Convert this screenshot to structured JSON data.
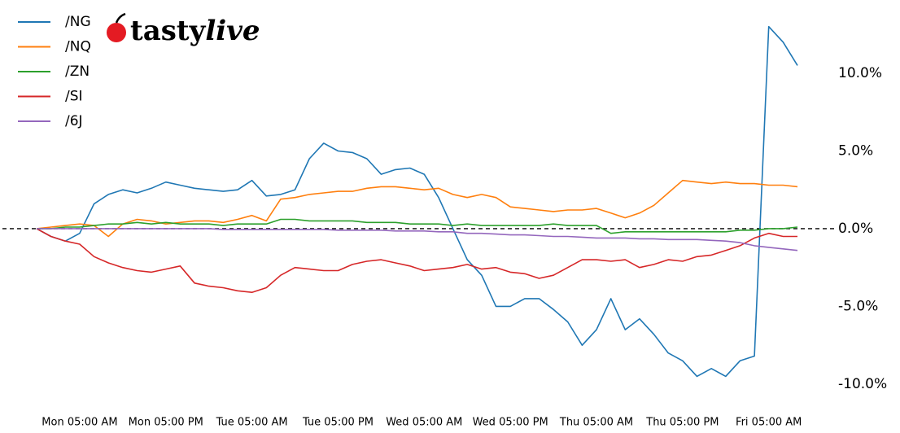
{
  "logo_parts": [
    "tasty",
    "live"
  ],
  "chart_data": {
    "type": "line",
    "categories": [
      null,
      null,
      null,
      "Mon 05:00 AM",
      null,
      null,
      null,
      null,
      null,
      "Mon 05:00 PM",
      null,
      null,
      null,
      null,
      null,
      "Tue 05:00 AM",
      null,
      null,
      null,
      null,
      null,
      "Tue 05:00 PM",
      null,
      null,
      null,
      null,
      null,
      "Wed 05:00 AM",
      null,
      null,
      null,
      null,
      null,
      "Wed 05:00 PM",
      null,
      null,
      null,
      null,
      null,
      "Thu 05:00 AM",
      null,
      null,
      null,
      null,
      null,
      "Thu 05:00 PM",
      null,
      null,
      null,
      null,
      null,
      "Fri 05:00 AM",
      null,
      null
    ],
    "series": [
      {
        "name": "/NG",
        "color": "#1f77b4",
        "values": [
          0,
          -0.5,
          -0.8,
          -0.3,
          1.6,
          2.2,
          2.5,
          2.3,
          2.6,
          3.0,
          2.8,
          2.6,
          2.5,
          2.4,
          2.5,
          3.1,
          2.1,
          2.2,
          2.5,
          4.5,
          5.5,
          5.0,
          4.9,
          4.5,
          3.5,
          3.8,
          3.9,
          3.5,
          2.0,
          0.0,
          -2.0,
          -3.0,
          -5.0,
          -5.0,
          -4.5,
          -4.5,
          -5.2,
          -6.0,
          -7.5,
          -6.5,
          -4.5,
          -6.5,
          -5.8,
          -6.8,
          -8.0,
          -8.5,
          -9.5,
          -9.0,
          -9.5,
          -8.5,
          -8.2,
          13.0,
          12.0,
          10.5
        ]
      },
      {
        "name": "/NQ",
        "color": "#ff7f0e",
        "values": [
          0,
          0.1,
          0.2,
          0.3,
          0.2,
          -0.5,
          0.3,
          0.6,
          0.5,
          0.3,
          0.4,
          0.5,
          0.5,
          0.4,
          0.6,
          0.85,
          0.5,
          1.9,
          2.0,
          2.2,
          2.3,
          2.4,
          2.4,
          2.6,
          2.7,
          2.7,
          2.6,
          2.5,
          2.6,
          2.2,
          2.0,
          2.2,
          2.0,
          1.4,
          1.3,
          1.2,
          1.1,
          1.2,
          1.2,
          1.3,
          1.0,
          0.7,
          1.0,
          1.5,
          2.3,
          3.1,
          3.0,
          2.9,
          3.0,
          2.9,
          2.9,
          2.8,
          2.8,
          2.7
        ]
      },
      {
        "name": "/ZN",
        "color": "#2ca02c",
        "values": [
          0,
          0,
          0.1,
          0.1,
          0.2,
          0.3,
          0.3,
          0.4,
          0.3,
          0.4,
          0.3,
          0.3,
          0.3,
          0.2,
          0.3,
          0.3,
          0.3,
          0.6,
          0.6,
          0.5,
          0.5,
          0.5,
          0.5,
          0.4,
          0.4,
          0.4,
          0.3,
          0.3,
          0.3,
          0.2,
          0.3,
          0.2,
          0.2,
          0.2,
          0.2,
          0.2,
          0.3,
          0.2,
          0.2,
          0.2,
          -0.3,
          -0.2,
          -0.2,
          -0.2,
          -0.2,
          -0.2,
          -0.2,
          -0.2,
          -0.2,
          -0.1,
          -0.1,
          0.0,
          0.0,
          0.1
        ]
      },
      {
        "name": "/SI",
        "color": "#d62728",
        "values": [
          0,
          -0.5,
          -0.8,
          -1.0,
          -1.8,
          -2.2,
          -2.5,
          -2.7,
          -2.8,
          -2.6,
          -2.4,
          -3.5,
          -3.7,
          -3.8,
          -4.0,
          -4.1,
          -3.8,
          -3.0,
          -2.5,
          -2.6,
          -2.7,
          -2.7,
          -2.3,
          -2.1,
          -2.0,
          -2.2,
          -2.4,
          -2.7,
          -2.6,
          -2.5,
          -2.3,
          -2.6,
          -2.5,
          -2.8,
          -2.9,
          -3.2,
          -3.0,
          -2.5,
          -2.0,
          -2.0,
          -2.1,
          -2.0,
          -2.5,
          -2.3,
          -2.0,
          -2.1,
          -1.8,
          -1.7,
          -1.4,
          -1.1,
          -0.6,
          -0.3,
          -0.5,
          -0.5
        ]
      },
      {
        "name": "/6J",
        "color": "#9467bd",
        "values": [
          0,
          0,
          0,
          0,
          0,
          0,
          0,
          0,
          0,
          0,
          0,
          0,
          0,
          -0.05,
          -0.05,
          -0.05,
          -0.05,
          -0.05,
          -0.05,
          -0.05,
          -0.05,
          -0.1,
          -0.1,
          -0.1,
          -0.1,
          -0.15,
          -0.15,
          -0.15,
          -0.2,
          -0.2,
          -0.3,
          -0.3,
          -0.35,
          -0.4,
          -0.4,
          -0.45,
          -0.5,
          -0.5,
          -0.55,
          -0.6,
          -0.6,
          -0.6,
          -0.65,
          -0.65,
          -0.7,
          -0.7,
          -0.7,
          -0.75,
          -0.8,
          -0.9,
          -1.1,
          -1.2,
          -1.3,
          -1.4
        ]
      }
    ],
    "ylim": [
      -11,
      13.9
    ],
    "yticks": [
      {
        "value": -10,
        "label": "-10.0%"
      },
      {
        "value": -5,
        "label": "-5.0%"
      },
      {
        "value": 0,
        "label": "0.0%"
      },
      {
        "value": 5,
        "label": "5.0%"
      },
      {
        "value": 10,
        "label": "10.0%"
      }
    ],
    "reference_line": 0,
    "legend": "upper left"
  }
}
